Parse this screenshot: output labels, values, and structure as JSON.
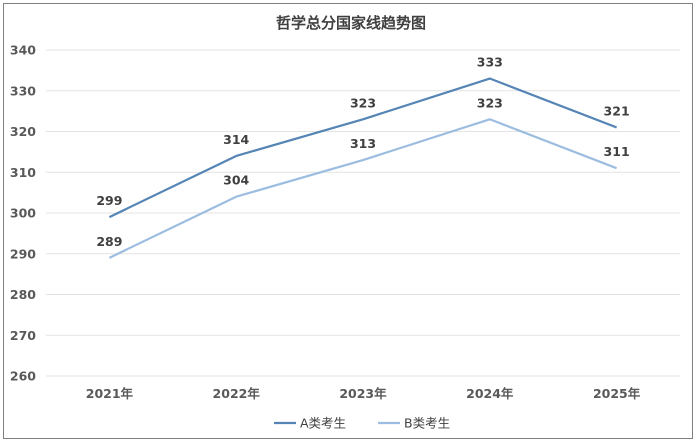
{
  "chart_data": {
    "type": "line",
    "title": "哲学总分国家线趋势图",
    "categories": [
      "2021年",
      "2022年",
      "2023年",
      "2024年",
      "2025年"
    ],
    "series": [
      {
        "name": "A类考生",
        "values": [
          299,
          314,
          323,
          333,
          321
        ],
        "color": "#5585b5"
      },
      {
        "name": "B类考生",
        "values": [
          289,
          304,
          313,
          323,
          311
        ],
        "color": "#9dbde0"
      }
    ],
    "ylim": [
      260,
      340
    ],
    "yticks": [
      260,
      270,
      280,
      290,
      300,
      310,
      320,
      330,
      340
    ],
    "xlabel": "",
    "ylabel": "",
    "grid": true,
    "legend": "bottom",
    "data_labels": true
  }
}
